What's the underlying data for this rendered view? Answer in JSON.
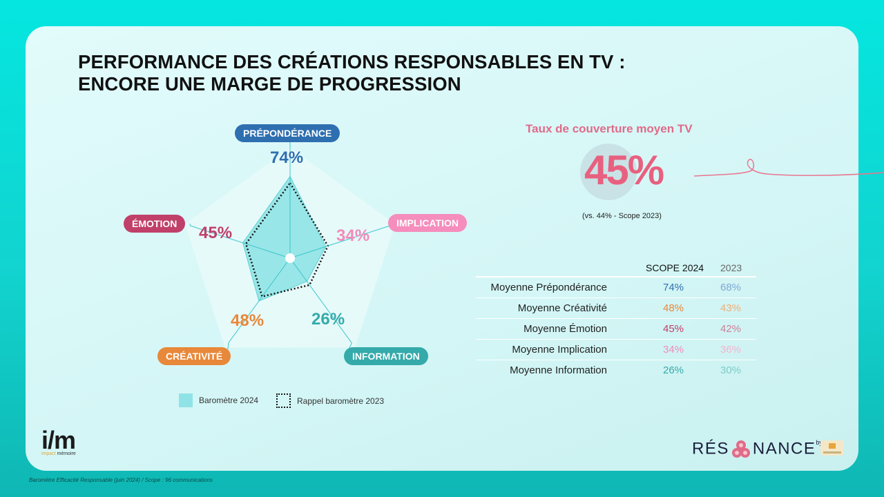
{
  "title": {
    "line1": "PERFORMANCE DES CRÉATIONS RESPONSABLES EN TV :",
    "line2": "ENCORE UNE MARGE DE PROGRESSION"
  },
  "chart_data": {
    "type": "radar",
    "axes": [
      "PRÉPONDÉRANCE",
      "IMPLICATION",
      "INFORMATION",
      "CRÉATIVITÉ",
      "ÉMOTION"
    ],
    "range": [
      0,
      100
    ],
    "series": [
      {
        "name": "Baromètre 2024",
        "values": [
          74,
          34,
          26,
          48,
          45
        ],
        "style": "filled"
      },
      {
        "name": "Rappel baromètre 2023",
        "values": [
          68,
          36,
          30,
          43,
          42
        ],
        "style": "dotted"
      }
    ],
    "value_labels": [
      "74%",
      "34%",
      "26%",
      "48%",
      "45%"
    ],
    "axis_colors": [
      "#2e6fb0",
      "#f28bb9",
      "#35aaaa",
      "#e8883a",
      "#c0406a"
    ]
  },
  "legend": {
    "item_2024": "Baromètre 2024",
    "item_2023": "Rappel baromètre 2023"
  },
  "coverage": {
    "label": "Taux de couverture moyen TV",
    "value": "45%",
    "note": "(vs. 44% - Scope 2023)"
  },
  "table": {
    "headers": [
      "SCOPE 2024",
      "2023"
    ],
    "rows": [
      {
        "label": "Moyenne Prépondérance",
        "v2024": "74%",
        "v2023": "68%",
        "color": "#2e6fb0",
        "color23": "#7fa8d4"
      },
      {
        "label": "Moyenne Créativité",
        "v2024": "48%",
        "v2023": "43%",
        "color": "#e8883a",
        "color23": "#efb07a"
      },
      {
        "label": "Moyenne Émotion",
        "v2024": "45%",
        "v2023": "42%",
        "color": "#c0406a",
        "color23": "#d07f99"
      },
      {
        "label": "Moyenne Implication",
        "v2024": "34%",
        "v2023": "36%",
        "color": "#f28bb9",
        "color23": "#f5b3d0"
      },
      {
        "label": "Moyenne Information",
        "v2024": "26%",
        "v2023": "30%",
        "color": "#35aaaa",
        "color23": "#7ccbcb"
      }
    ]
  },
  "logos": {
    "im_big": "i/m",
    "im_small_a": "impact",
    "im_small_b": "mémoire",
    "resonance_a": "RÉS",
    "resonance_b": "NANCE",
    "resonance_by": "by"
  },
  "footnote": "Baromètre Efficacité Responsable (juin 2024) / Scope : 96 communications"
}
